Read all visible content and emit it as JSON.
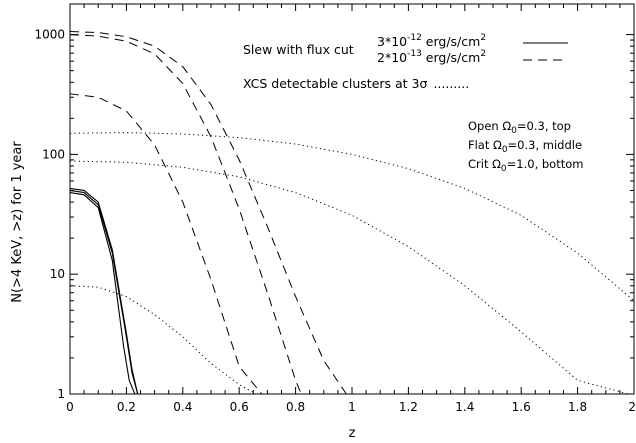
{
  "chart_data": {
    "type": "line",
    "xlabel": "z",
    "ylabel": "N(>4 KeV, >z) for 1 year",
    "x_tick_labels": [
      "0",
      "0.2",
      "0.4",
      "0.6",
      "0.8",
      "1",
      "1.2",
      "1.4",
      "1.6",
      "1.8",
      "2"
    ],
    "y_tick_labels": [
      "1",
      "10",
      "100",
      "1000"
    ],
    "xlim": [
      0,
      2
    ],
    "ylim": [
      1,
      1800
    ],
    "yscale": "log",
    "grid": false,
    "legend": {
      "lead": "Slew with flux cut",
      "entries": [
        {
          "coef": "3*10",
          "exp": "-12",
          "unit": " erg/s/cm",
          "unit_exp": "2",
          "style": "solid"
        },
        {
          "coef": "2*10",
          "exp": "-13",
          "unit": " erg/s/cm",
          "unit_exp": "2",
          "style": "dashed"
        }
      ],
      "xcs_text": "XCS detectable clusters at 3",
      "xcs_sigma": "σ",
      "xcs_dots": "........."
    },
    "annotations": [
      {
        "pre": "Open Ω",
        "sub": "0",
        "post": "=0.3, top"
      },
      {
        "pre": "Flat Ω",
        "sub": "0",
        "post": "=0.3, middle"
      },
      {
        "pre": "Crit Ω",
        "sub": "0",
        "post": "=1.0, bottom"
      }
    ],
    "series": [
      {
        "style": "solid",
        "x": [
          0,
          0.05,
          0.1,
          0.15,
          0.2,
          0.22,
          0.24
        ],
        "y": [
          50,
          48,
          38,
          15,
          3,
          1.5,
          1
        ]
      },
      {
        "style": "solid",
        "x": [
          0,
          0.05,
          0.1,
          0.15,
          0.2,
          0.22,
          0.24
        ],
        "y": [
          52,
          50,
          40,
          16,
          3.2,
          1.6,
          1
        ]
      },
      {
        "style": "solid",
        "x": [
          0,
          0.05,
          0.1,
          0.15,
          0.19,
          0.21,
          0.23
        ],
        "y": [
          48,
          46,
          36,
          13,
          2.5,
          1.3,
          1
        ]
      },
      {
        "style": "dashed",
        "x": [
          0,
          0.1,
          0.2,
          0.3,
          0.4,
          0.5,
          0.6,
          0.7,
          0.8,
          0.9,
          0.98
        ],
        "y": [
          1060,
          1040,
          960,
          800,
          540,
          260,
          90,
          25,
          6.5,
          1.9,
          1
        ]
      },
      {
        "style": "dashed",
        "x": [
          0,
          0.1,
          0.2,
          0.3,
          0.4,
          0.5,
          0.6,
          0.7,
          0.8,
          0.82
        ],
        "y": [
          1000,
          970,
          880,
          690,
          390,
          140,
          35,
          7,
          1.3,
          1
        ]
      },
      {
        "style": "dashed",
        "x": [
          0,
          0.1,
          0.2,
          0.3,
          0.4,
          0.5,
          0.6,
          0.68
        ],
        "y": [
          320,
          300,
          230,
          120,
          40,
          9,
          1.7,
          1
        ]
      },
      {
        "style": "dotted",
        "x": [
          0,
          0.2,
          0.4,
          0.6,
          0.8,
          1.0,
          1.2,
          1.4,
          1.6,
          1.8,
          2.0
        ],
        "y": [
          150,
          152,
          148,
          138,
          122,
          100,
          76,
          52,
          31,
          15,
          6
        ]
      },
      {
        "style": "dotted",
        "x": [
          0,
          0.2,
          0.4,
          0.6,
          0.8,
          1.0,
          1.2,
          1.4,
          1.6,
          1.8,
          1.98
        ],
        "y": [
          88,
          86,
          78,
          65,
          48,
          31,
          17,
          8,
          3.3,
          1.3,
          1
        ]
      },
      {
        "style": "dotted",
        "x": [
          0,
          0.1,
          0.2,
          0.3,
          0.4,
          0.5,
          0.6,
          0.66
        ],
        "y": [
          8,
          7.8,
          6.5,
          4.6,
          3,
          1.8,
          1.2,
          1
        ]
      }
    ]
  }
}
